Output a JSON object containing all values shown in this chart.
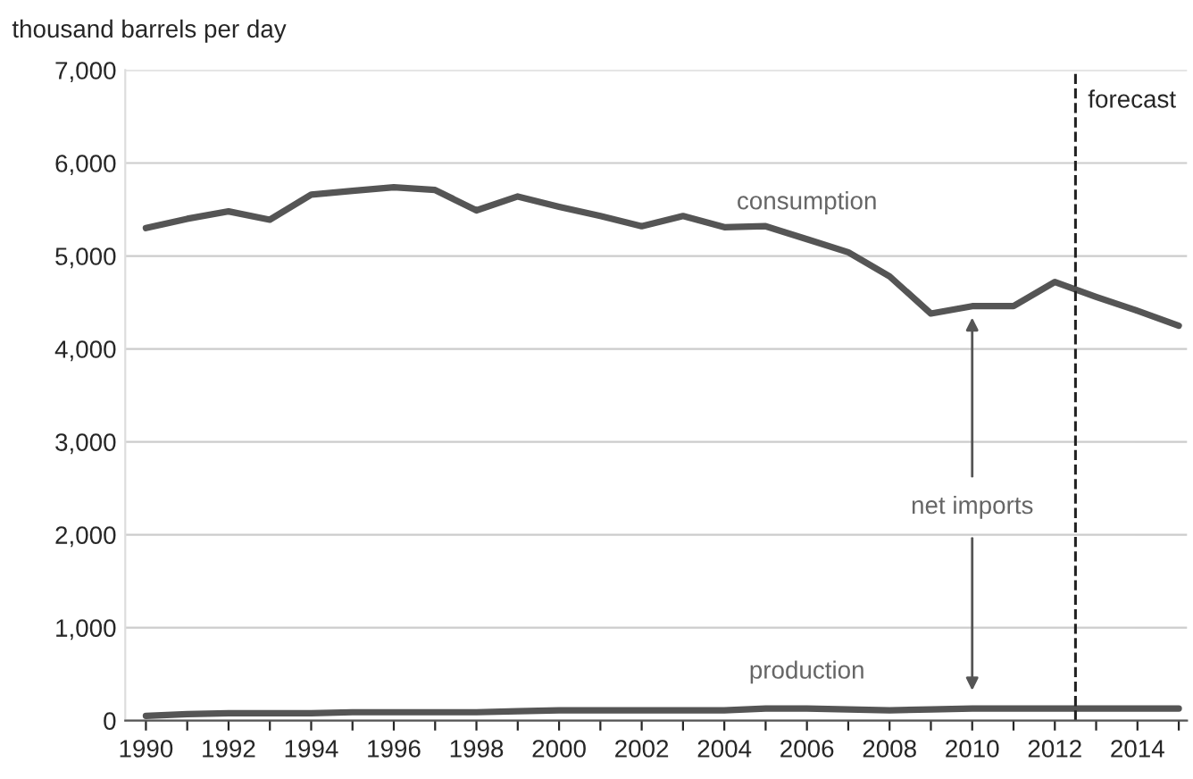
{
  "chart_data": {
    "type": "line",
    "ylabel": "thousand barrels per day",
    "x": [
      1990,
      1991,
      1992,
      1993,
      1994,
      1995,
      1996,
      1997,
      1998,
      1999,
      2000,
      2001,
      2002,
      2003,
      2004,
      2005,
      2006,
      2007,
      2008,
      2009,
      2010,
      2011,
      2012,
      2013,
      2014,
      2015
    ],
    "series": [
      {
        "name": "consumption",
        "color": "#555555",
        "values": [
          5300,
          5400,
          5480,
          5390,
          5660,
          5700,
          5740,
          5710,
          5490,
          5640,
          5530,
          5430,
          5320,
          5430,
          5310,
          5320,
          5180,
          5040,
          4780,
          4380,
          4460,
          4460,
          4720,
          4560,
          4410,
          4250
        ]
      },
      {
        "name": "production",
        "color": "#555555",
        "values": [
          50,
          70,
          80,
          80,
          80,
          90,
          90,
          90,
          90,
          100,
          110,
          110,
          110,
          110,
          110,
          130,
          130,
          120,
          110,
          120,
          130,
          130,
          130,
          130,
          130,
          130
        ]
      }
    ],
    "xlim": [
      1989.5,
      2015.2
    ],
    "xticks": [
      1990,
      {
        "value": 1991,
        "label": null
      },
      1992,
      {
        "value": 1993,
        "label": null
      },
      1994,
      {
        "value": 1995,
        "label": null
      },
      1996,
      {
        "value": 1997,
        "label": null
      },
      1998,
      {
        "value": 1999,
        "label": null
      },
      2000,
      {
        "value": 2001,
        "label": null
      },
      2002,
      {
        "value": 2003,
        "label": null
      },
      2004,
      {
        "value": 2005,
        "label": null
      },
      2006,
      {
        "value": 2007,
        "label": null
      },
      2008,
      {
        "value": 2009,
        "label": null
      },
      2010,
      {
        "value": 2011,
        "label": null
      },
      2012,
      {
        "value": 2013,
        "label": null
      },
      2014,
      {
        "value": 2015,
        "label": null
      }
    ],
    "ylim": [
      0,
      7000
    ],
    "yticks": [
      0,
      {
        "value": 1000,
        "label": "1,000"
      },
      {
        "value": 2000,
        "label": "2,000"
      },
      {
        "value": 3000,
        "label": "3,000"
      },
      {
        "value": 4000,
        "label": "4,000"
      },
      {
        "value": 5000,
        "label": "5,000"
      },
      {
        "value": 6000,
        "label": "6,000"
      },
      {
        "value": 7000,
        "label": "7,000"
      }
    ],
    "grid": "y",
    "legend": false,
    "ref_lines": [
      {
        "axis": "x",
        "value": 2012.5,
        "label": "forecast",
        "color": "#222222",
        "line_style": "dashed"
      }
    ],
    "annotations": [
      "net imports"
    ]
  }
}
